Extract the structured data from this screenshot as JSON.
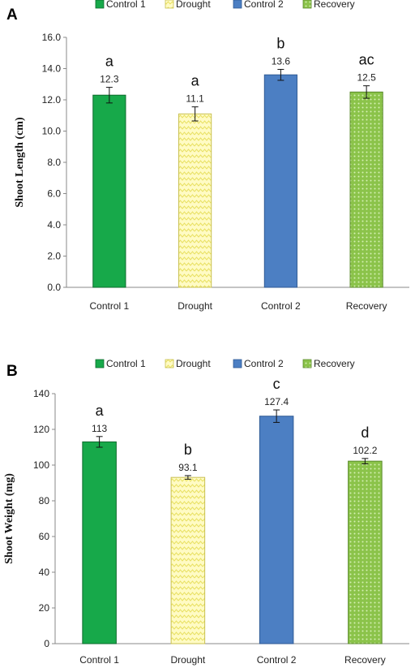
{
  "colors": {
    "control1": "#17a94a",
    "drought": "#fffbc4",
    "drought_pattern": "#e8e060",
    "control2": "#4c7fc3",
    "recovery": "#8bc34a",
    "recovery_dots": "#d6f0b4"
  },
  "chart_data": [
    {
      "type": "bar",
      "panel_label": "A",
      "categories": [
        "Control 1",
        "Drought",
        "Control 2",
        "Recovery"
      ],
      "values": [
        12.3,
        11.1,
        13.6,
        12.5
      ],
      "value_labels": [
        "12.3",
        "11.1",
        "13.6",
        "12.5"
      ],
      "errors": [
        0.5,
        0.45,
        0.35,
        0.4
      ],
      "significance": [
        "a",
        "a",
        "b",
        "ac"
      ],
      "legend": [
        "Control 1",
        "Drought",
        "Control 2",
        "Recovery"
      ],
      "legend_position": "top",
      "title": "",
      "xlabel": "",
      "ylabel": "Shoot Length (cm)",
      "ylim": [
        0,
        16
      ],
      "yticks": [
        "0.0",
        "2.0",
        "4.0",
        "6.0",
        "8.0",
        "10.0",
        "12.0",
        "14.0",
        "16.0"
      ],
      "grid": false
    },
    {
      "type": "bar",
      "panel_label": "B",
      "categories": [
        "Control 1",
        "Drought",
        "Control 2",
        "Recovery"
      ],
      "values": [
        113,
        93.1,
        127.4,
        102.2
      ],
      "value_labels": [
        "113",
        "93.1",
        "127.4",
        "102.2"
      ],
      "errors": [
        3,
        1,
        3.5,
        1.5
      ],
      "significance": [
        "a",
        "b",
        "c",
        "d"
      ],
      "legend": [
        "Control 1",
        "Drought",
        "Control 2",
        "Recovery"
      ],
      "legend_position": "top",
      "title": "",
      "xlabel": "",
      "ylabel": "Shoot Weight (mg)",
      "ylim": [
        0,
        140
      ],
      "yticks": [
        "0",
        "20",
        "40",
        "60",
        "80",
        "100",
        "120",
        "140"
      ],
      "grid": false
    }
  ]
}
